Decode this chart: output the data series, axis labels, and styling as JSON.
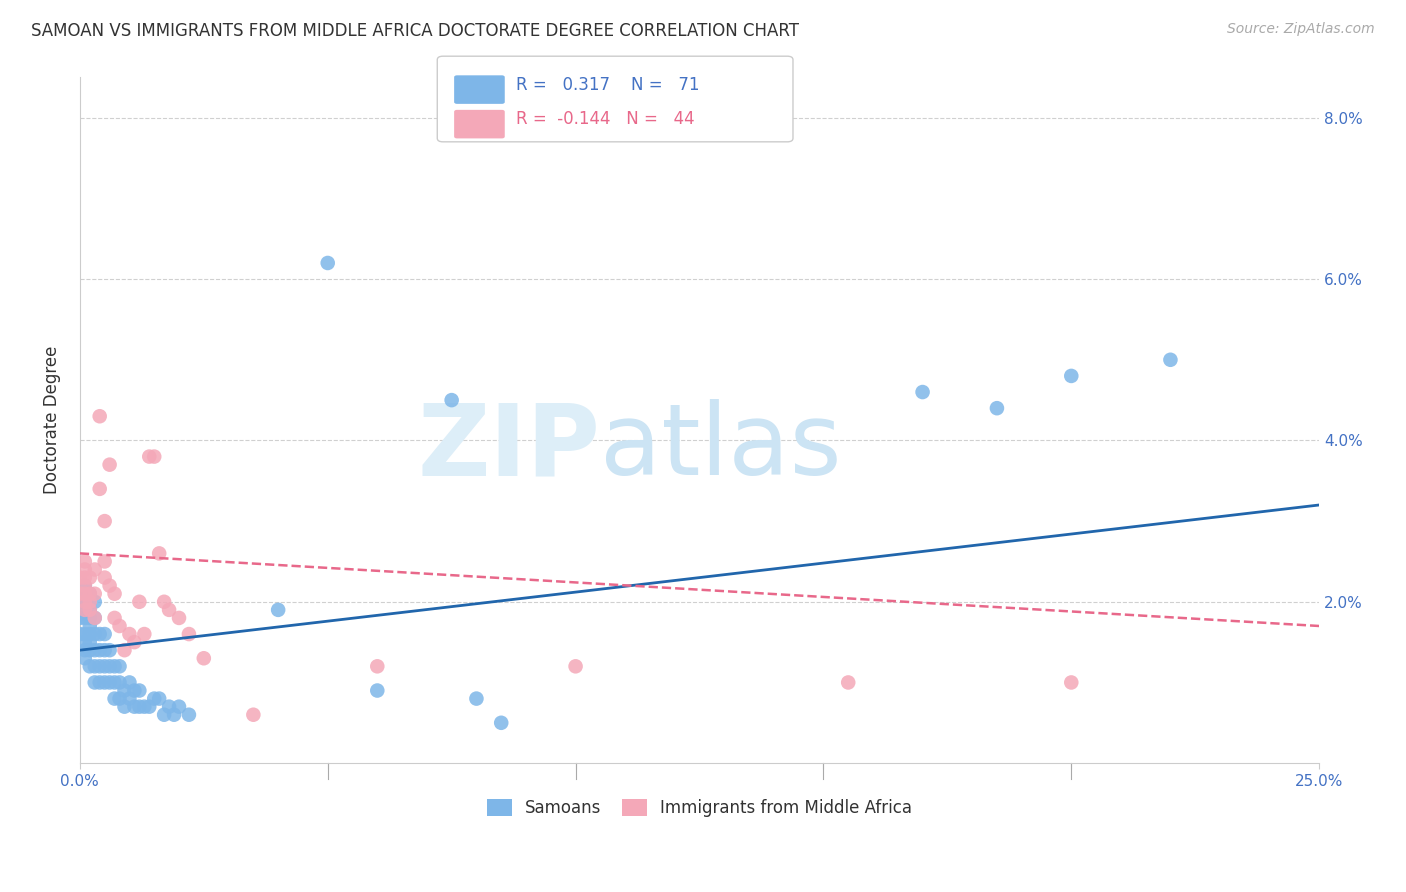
{
  "title": "SAMOAN VS IMMIGRANTS FROM MIDDLE AFRICA DOCTORATE DEGREE CORRELATION CHART",
  "source": "Source: ZipAtlas.com",
  "ylabel": "Doctorate Degree",
  "xlim": [
    0.0,
    0.25
  ],
  "ylim": [
    0.0,
    0.085
  ],
  "ytick_vals": [
    0.02,
    0.04,
    0.06,
    0.08
  ],
  "xtick_vals": [
    0.0,
    0.05,
    0.1,
    0.15,
    0.2,
    0.25
  ],
  "legend_blue_R": "0.317",
  "legend_blue_N": "71",
  "legend_pink_R": "-0.144",
  "legend_pink_N": "44",
  "blue_color": "#7eb6e8",
  "pink_color": "#f4a8b8",
  "trend_blue": "#2166ac",
  "trend_pink": "#e8688a",
  "background_color": "#ffffff",
  "grid_color": "#d0d0d0",
  "blue_x": [
    0.0,
    0.0,
    0.0,
    0.001,
    0.001,
    0.001,
    0.001,
    0.001,
    0.001,
    0.001,
    0.001,
    0.001,
    0.002,
    0.002,
    0.002,
    0.002,
    0.002,
    0.002,
    0.002,
    0.002,
    0.002,
    0.003,
    0.003,
    0.003,
    0.003,
    0.003,
    0.003,
    0.004,
    0.004,
    0.004,
    0.004,
    0.005,
    0.005,
    0.005,
    0.005,
    0.006,
    0.006,
    0.006,
    0.007,
    0.007,
    0.007,
    0.008,
    0.008,
    0.008,
    0.009,
    0.009,
    0.01,
    0.01,
    0.011,
    0.011,
    0.012,
    0.012,
    0.013,
    0.014,
    0.015,
    0.016,
    0.017,
    0.018,
    0.019,
    0.02,
    0.022,
    0.04,
    0.05,
    0.06,
    0.075,
    0.08,
    0.085,
    0.17,
    0.185,
    0.2,
    0.22
  ],
  "blue_y": [
    0.016,
    0.018,
    0.02,
    0.014,
    0.016,
    0.018,
    0.019,
    0.02,
    0.021,
    0.022,
    0.015,
    0.013,
    0.012,
    0.014,
    0.016,
    0.018,
    0.02,
    0.021,
    0.015,
    0.017,
    0.019,
    0.01,
    0.012,
    0.014,
    0.016,
    0.018,
    0.02,
    0.01,
    0.012,
    0.014,
    0.016,
    0.01,
    0.012,
    0.014,
    0.016,
    0.01,
    0.012,
    0.014,
    0.008,
    0.01,
    0.012,
    0.008,
    0.01,
    0.012,
    0.007,
    0.009,
    0.008,
    0.01,
    0.007,
    0.009,
    0.007,
    0.009,
    0.007,
    0.007,
    0.008,
    0.008,
    0.006,
    0.007,
    0.006,
    0.007,
    0.006,
    0.019,
    0.062,
    0.009,
    0.045,
    0.008,
    0.005,
    0.046,
    0.044,
    0.048,
    0.05
  ],
  "pink_x": [
    0.0,
    0.0,
    0.001,
    0.001,
    0.001,
    0.001,
    0.001,
    0.001,
    0.001,
    0.002,
    0.002,
    0.002,
    0.002,
    0.003,
    0.003,
    0.003,
    0.004,
    0.004,
    0.005,
    0.005,
    0.005,
    0.006,
    0.006,
    0.007,
    0.007,
    0.008,
    0.009,
    0.01,
    0.011,
    0.012,
    0.013,
    0.014,
    0.015,
    0.016,
    0.017,
    0.018,
    0.02,
    0.022,
    0.025,
    0.035,
    0.06,
    0.1,
    0.155,
    0.2
  ],
  "pink_y": [
    0.021,
    0.023,
    0.019,
    0.021,
    0.023,
    0.025,
    0.022,
    0.024,
    0.02,
    0.019,
    0.021,
    0.023,
    0.02,
    0.018,
    0.021,
    0.024,
    0.034,
    0.043,
    0.023,
    0.025,
    0.03,
    0.022,
    0.037,
    0.018,
    0.021,
    0.017,
    0.014,
    0.016,
    0.015,
    0.02,
    0.016,
    0.038,
    0.038,
    0.026,
    0.02,
    0.019,
    0.018,
    0.016,
    0.013,
    0.006,
    0.012,
    0.012,
    0.01,
    0.01
  ],
  "blue_trend_x": [
    0.0,
    0.25
  ],
  "blue_trend_y": [
    0.014,
    0.032
  ],
  "pink_trend_x": [
    0.0,
    0.25
  ],
  "pink_trend_y": [
    0.026,
    0.017
  ]
}
